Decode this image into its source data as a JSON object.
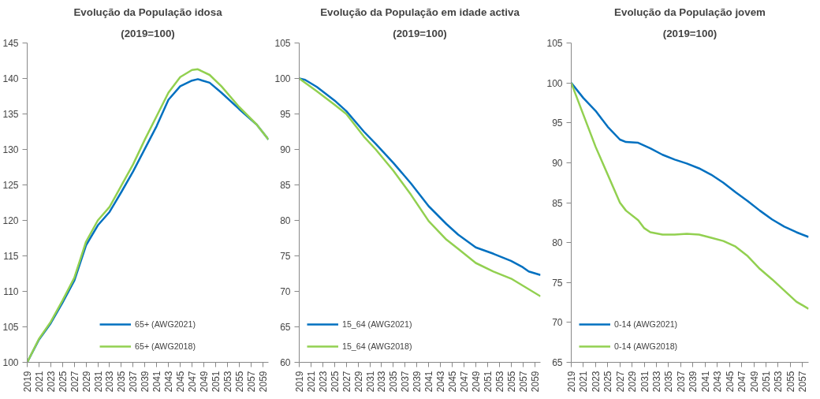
{
  "chart_data": [
    {
      "type": "line",
      "title": "Evolução da População idosa",
      "subtitle": "(2019=100)",
      "xlim": [
        2019,
        2060
      ],
      "xticks": [
        2019,
        2021,
        2023,
        2025,
        2027,
        2029,
        2031,
        2033,
        2035,
        2037,
        2039,
        2041,
        2043,
        2045,
        2047,
        2049,
        2051,
        2053,
        2055,
        2057,
        2059
      ],
      "ylim": [
        100,
        145
      ],
      "yticks": [
        100,
        105,
        110,
        115,
        120,
        125,
        130,
        135,
        140,
        145
      ],
      "grid": false,
      "legend": "bottom",
      "series": [
        {
          "name": "65+ (AWG2021)",
          "color": "#0070c0",
          "x": [
            2019,
            2021,
            2023,
            2025,
            2027,
            2029,
            2031,
            2033,
            2035,
            2037,
            2039,
            2041,
            2043,
            2045,
            2047,
            2048,
            2050,
            2052,
            2055,
            2058,
            2060
          ],
          "values": [
            100,
            103.2,
            105.5,
            108.4,
            111.5,
            116.5,
            119.3,
            121.2,
            124.0,
            126.9,
            130.1,
            133.3,
            137.0,
            138.9,
            139.7,
            139.9,
            139.4,
            138.0,
            135.7,
            133.5,
            131.4
          ]
        },
        {
          "name": "65+ (AWG2018)",
          "color": "#92d050",
          "x": [
            2019,
            2021,
            2023,
            2025,
            2027,
            2029,
            2031,
            2033,
            2035,
            2037,
            2039,
            2041,
            2043,
            2045,
            2047,
            2048,
            2050,
            2052,
            2055,
            2058,
            2060
          ],
          "values": [
            100,
            103.3,
            105.7,
            108.7,
            111.9,
            117.0,
            120.0,
            121.9,
            124.9,
            127.9,
            131.4,
            134.7,
            138.0,
            140.2,
            141.2,
            141.3,
            140.5,
            138.9,
            136.0,
            133.5,
            131.4
          ]
        }
      ]
    },
    {
      "type": "line",
      "title": "Evolução da População em idade activa",
      "subtitle": "(2019=100)",
      "xlim": [
        2019,
        2060
      ],
      "xticks": [
        2019,
        2021,
        2023,
        2025,
        2027,
        2029,
        2031,
        2033,
        2035,
        2037,
        2039,
        2041,
        2043,
        2045,
        2047,
        2049,
        2051,
        2053,
        2055,
        2057,
        2059
      ],
      "ylim": [
        60,
        105
      ],
      "yticks": [
        60,
        65,
        70,
        75,
        80,
        85,
        90,
        95,
        100,
        105
      ],
      "grid": false,
      "legend": "bottom left",
      "series": [
        {
          "name": "15_64 (AWG2021)",
          "color": "#0070c0",
          "x": [
            2019,
            2020,
            2022,
            2025,
            2027,
            2030,
            2032,
            2035,
            2038,
            2041,
            2044,
            2046,
            2049,
            2052,
            2055,
            2057,
            2058,
            2060
          ],
          "values": [
            100,
            99.8,
            98.8,
            96.9,
            95.4,
            92.5,
            90.8,
            88.1,
            85.2,
            82.0,
            79.5,
            78.0,
            76.2,
            75.3,
            74.3,
            73.4,
            72.8,
            72.3
          ]
        },
        {
          "name": "15_64 (AWG2018)",
          "color": "#92d050",
          "x": [
            2019,
            2022,
            2025,
            2027,
            2030,
            2032,
            2035,
            2038,
            2041,
            2044,
            2046,
            2049,
            2052,
            2055,
            2057,
            2060
          ],
          "values": [
            100,
            98.2,
            96.3,
            95.0,
            91.8,
            90.0,
            87.0,
            83.6,
            79.9,
            77.3,
            76.0,
            74.0,
            72.8,
            71.8,
            70.8,
            69.3
          ]
        }
      ]
    },
    {
      "type": "line",
      "title": "Evolução da População jovem",
      "subtitle": "(2019=100)",
      "xlim": [
        2019,
        2058
      ],
      "xticks": [
        2019,
        2021,
        2023,
        2025,
        2027,
        2029,
        2031,
        2033,
        2035,
        2037,
        2039,
        2041,
        2043,
        2045,
        2047,
        2049,
        2051,
        2053,
        2055,
        2057
      ],
      "ylim": [
        65,
        105
      ],
      "yticks": [
        65,
        70,
        75,
        80,
        85,
        90,
        95,
        100,
        105
      ],
      "grid": false,
      "legend": "bottom left",
      "series": [
        {
          "name": "0-14 (AWG2021)",
          "color": "#0070c0",
          "x": [
            2019,
            2021,
            2023,
            2025,
            2027,
            2028,
            2030,
            2032,
            2034,
            2036,
            2038,
            2040,
            2042,
            2044,
            2046,
            2048,
            2050,
            2052,
            2054,
            2056,
            2058
          ],
          "values": [
            100,
            98.1,
            96.5,
            94.5,
            92.9,
            92.6,
            92.5,
            91.8,
            91.0,
            90.4,
            89.9,
            89.3,
            88.5,
            87.5,
            86.3,
            85.2,
            84.0,
            82.9,
            82.0,
            81.3,
            80.7
          ]
        },
        {
          "name": "0-14 (AWG2018)",
          "color": "#92d050",
          "x": [
            2019,
            2021,
            2023,
            2025,
            2027,
            2028,
            2030,
            2031,
            2032,
            2034,
            2036,
            2038,
            2040,
            2042,
            2044,
            2046,
            2048,
            2050,
            2052,
            2054,
            2056,
            2058
          ],
          "values": [
            100,
            96.0,
            92.0,
            88.5,
            85.0,
            84.0,
            82.8,
            81.8,
            81.3,
            81.0,
            81.0,
            81.1,
            81.0,
            80.6,
            80.2,
            79.5,
            78.3,
            76.7,
            75.4,
            74.0,
            72.6,
            71.7
          ]
        }
      ]
    }
  ]
}
